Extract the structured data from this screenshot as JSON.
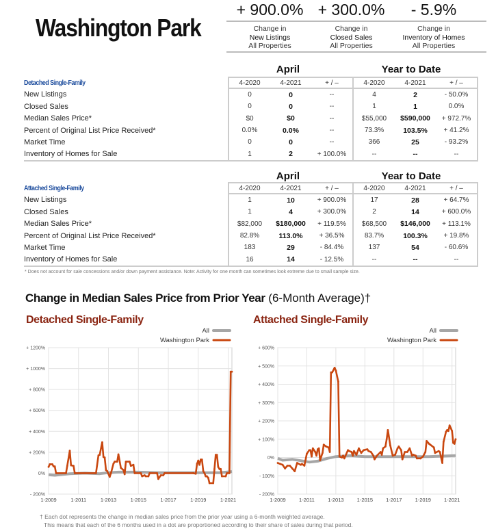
{
  "title": "Washington Park",
  "kpis": [
    {
      "value": "+ 900.0%",
      "line1": "Change in",
      "line2": "New Listings",
      "line3": "All Properties"
    },
    {
      "value": "+ 300.0%",
      "line1": "Change in",
      "line2": "Closed Sales",
      "line3": "All Properties"
    },
    {
      "value": "- 5.9%",
      "line1": "Change in",
      "line2": "Inventory of Homes",
      "line3": "All Properties"
    }
  ],
  "tables": [
    {
      "section": "Detached Single-Family",
      "group1": "April",
      "group2": "Year to Date",
      "columns": [
        "4-2020",
        "4-2021",
        "+ / –",
        "4-2020",
        "4-2021",
        "+ / –"
      ],
      "rows": [
        {
          "label": "New Listings",
          "cells": [
            "0",
            "0",
            "--",
            "4",
            "2",
            "- 50.0%"
          ]
        },
        {
          "label": "Closed Sales",
          "cells": [
            "0",
            "0",
            "--",
            "1",
            "1",
            "0.0%"
          ]
        },
        {
          "label": "Median Sales Price*",
          "cells": [
            "$0",
            "$0",
            "--",
            "$55,000",
            "$590,000",
            "+ 972.7%"
          ]
        },
        {
          "label": "Percent of Original List Price Received*",
          "cells": [
            "0.0%",
            "0.0%",
            "--",
            "73.3%",
            "103.5%",
            "+ 41.2%"
          ]
        },
        {
          "label": "Market Time",
          "cells": [
            "0",
            "0",
            "--",
            "366",
            "25",
            "- 93.2%"
          ]
        },
        {
          "label": "Inventory of Homes for Sale",
          "cells": [
            "1",
            "2",
            "+ 100.0%",
            "--",
            "--",
            "--"
          ]
        }
      ]
    },
    {
      "section": "Attached Single-Family",
      "group1": "April",
      "group2": "Year to Date",
      "columns": [
        "4-2020",
        "4-2021",
        "+ / –",
        "4-2020",
        "4-2021",
        "+ / –"
      ],
      "rows": [
        {
          "label": "New Listings",
          "cells": [
            "1",
            "10",
            "+ 900.0%",
            "17",
            "28",
            "+ 64.7%"
          ]
        },
        {
          "label": "Closed Sales",
          "cells": [
            "1",
            "4",
            "+ 300.0%",
            "2",
            "14",
            "+ 600.0%"
          ]
        },
        {
          "label": "Median Sales Price*",
          "cells": [
            "$82,000",
            "$180,000",
            "+ 119.5%",
            "$68,500",
            "$146,000",
            "+ 113.1%"
          ]
        },
        {
          "label": "Percent of Original List Price Received*",
          "cells": [
            "82.8%",
            "113.0%",
            "+ 36.5%",
            "83.7%",
            "100.3%",
            "+ 19.8%"
          ]
        },
        {
          "label": "Market Time",
          "cells": [
            "183",
            "29",
            "- 84.4%",
            "137",
            "54",
            "- 60.6%"
          ]
        },
        {
          "label": "Inventory of Homes for Sale",
          "cells": [
            "16",
            "14",
            "- 12.5%",
            "--",
            "--",
            "--"
          ]
        }
      ]
    }
  ],
  "table_footnote": "* Does not account for sale concessions and/or down payment assistance. Note: Activity for one month can sometimes look extreme due to small sample size.",
  "charts_title": "Change in Median Sales Price from Prior Year",
  "charts_subtitle": "(6-Month Average)†",
  "charts_footnote": [
    "† Each dot represents the change in median sales price from the prior year using a 6-month weighted average.",
    "This means that each of the 6 months used in a dot are proportioned according to their share of sales during that period."
  ],
  "colors": {
    "section_blue": "#1f4e9e",
    "chart_title": "#8a2411",
    "all_series": "#a6a6a6",
    "area_series": "#c9470f"
  },
  "chart_data": [
    {
      "type": "line",
      "title": "Detached Single-Family",
      "xticks": [
        "1-2009",
        "1-2011",
        "1-2013",
        "1-2015",
        "1-2017",
        "1-2019",
        "1-2021"
      ],
      "yticks": [
        "+ 1200%",
        "+ 1000%",
        "+ 800%",
        "+ 600%",
        "+ 400%",
        "+ 200%",
        "0%",
        "- 200%"
      ],
      "ylim": [
        -200,
        1200
      ],
      "xlim": [
        "2009-01",
        "2021-04"
      ],
      "grid": true,
      "legend": "top-right",
      "series": [
        {
          "name": "All",
          "color": "#a6a6a6",
          "points": [
            [
              "2009-01",
              -15
            ],
            [
              "2009-06",
              -20
            ],
            [
              "2010-06",
              -5
            ],
            [
              "2011-06",
              0
            ],
            [
              "2012-06",
              -5
            ],
            [
              "2013-01",
              5
            ],
            [
              "2013-09",
              10
            ],
            [
              "2015-01",
              10
            ],
            [
              "2016-06",
              5
            ],
            [
              "2018-01",
              5
            ],
            [
              "2019-06",
              5
            ],
            [
              "2020-06",
              5
            ],
            [
              "2021-04",
              15
            ]
          ]
        },
        {
          "name": "Washington Park",
          "color": "#c9470f",
          "points": [
            [
              "2009-01",
              60
            ],
            [
              "2009-02",
              85
            ],
            [
              "2009-04",
              85
            ],
            [
              "2009-05",
              65
            ],
            [
              "2009-06",
              65
            ],
            [
              "2009-07",
              0
            ],
            [
              "2010-03",
              0
            ],
            [
              "2010-04",
              70
            ],
            [
              "2010-06",
              215
            ],
            [
              "2010-07",
              75
            ],
            [
              "2010-09",
              70
            ],
            [
              "2010-10",
              0
            ],
            [
              "2012-03",
              0
            ],
            [
              "2012-05",
              170
            ],
            [
              "2012-06",
              175
            ],
            [
              "2012-08",
              295
            ],
            [
              "2012-09",
              155
            ],
            [
              "2012-10",
              150
            ],
            [
              "2012-11",
              30
            ],
            [
              "2012-12",
              20
            ],
            [
              "2013-02",
              -35
            ],
            [
              "2013-03",
              0
            ],
            [
              "2013-05",
              90
            ],
            [
              "2013-06",
              110
            ],
            [
              "2013-08",
              110
            ],
            [
              "2013-09",
              180
            ],
            [
              "2013-11",
              50
            ],
            [
              "2014-01",
              30
            ],
            [
              "2014-02",
              -10
            ],
            [
              "2014-03",
              110
            ],
            [
              "2014-06",
              110
            ],
            [
              "2014-07",
              70
            ],
            [
              "2014-09",
              80
            ],
            [
              "2014-10",
              0
            ],
            [
              "2015-03",
              0
            ],
            [
              "2015-04",
              -30
            ],
            [
              "2015-06",
              -20
            ],
            [
              "2015-07",
              -30
            ],
            [
              "2015-09",
              -30
            ],
            [
              "2015-10",
              0
            ],
            [
              "2016-04",
              0
            ],
            [
              "2016-05",
              -55
            ],
            [
              "2016-07",
              -20
            ],
            [
              "2016-09",
              -20
            ],
            [
              "2016-10",
              0
            ],
            [
              "2018-09",
              0
            ],
            [
              "2018-11",
              -5
            ],
            [
              "2018-12",
              90
            ],
            [
              "2019-01",
              120
            ],
            [
              "2019-02",
              80
            ],
            [
              "2019-03",
              130
            ],
            [
              "2019-04",
              130
            ],
            [
              "2019-05",
              20
            ],
            [
              "2019-06",
              0
            ],
            [
              "2019-07",
              -30
            ],
            [
              "2019-08",
              -30
            ],
            [
              "2019-09",
              -45
            ],
            [
              "2019-10",
              -95
            ],
            [
              "2020-01",
              -95
            ],
            [
              "2020-02",
              40
            ],
            [
              "2020-03",
              175
            ],
            [
              "2020-04",
              175
            ],
            [
              "2020-05",
              60
            ],
            [
              "2020-06",
              40
            ],
            [
              "2020-07",
              40
            ],
            [
              "2020-08",
              -30
            ],
            [
              "2020-11",
              -30
            ],
            [
              "2020-12",
              0
            ],
            [
              "2021-02",
              0
            ],
            [
              "2021-03",
              970
            ],
            [
              "2021-04",
              970
            ]
          ]
        }
      ]
    },
    {
      "type": "line",
      "title": "Attached Single-Family",
      "xticks": [
        "1-2009",
        "1-2011",
        "1-2013",
        "1-2015",
        "1-2017",
        "1-2019",
        "1-2021"
      ],
      "yticks": [
        "+ 600%",
        "+ 500%",
        "+ 400%",
        "+ 300%",
        "+ 200%",
        "+ 100%",
        "0%",
        "- 100%",
        "- 200%"
      ],
      "ylim": [
        -200,
        600
      ],
      "xlim": [
        "2009-01",
        "2021-04"
      ],
      "grid": true,
      "legend": "top-right",
      "series": [
        {
          "name": "All",
          "color": "#a6a6a6",
          "points": [
            [
              "2009-01",
              -5
            ],
            [
              "2009-05",
              -15
            ],
            [
              "2010-01",
              -10
            ],
            [
              "2011-03",
              -25
            ],
            [
              "2011-10",
              -20
            ],
            [
              "2012-06",
              -5
            ],
            [
              "2013-01",
              5
            ],
            [
              "2014-01",
              10
            ],
            [
              "2015-01",
              5
            ],
            [
              "2016-06",
              5
            ],
            [
              "2018-01",
              5
            ],
            [
              "2019-06",
              5
            ],
            [
              "2021-04",
              10
            ]
          ]
        },
        {
          "name": "Washington Park",
          "color": "#c9470f",
          "points": [
            [
              "2009-01",
              -30
            ],
            [
              "2009-03",
              -35
            ],
            [
              "2009-05",
              -40
            ],
            [
              "2009-07",
              -60
            ],
            [
              "2009-09",
              -45
            ],
            [
              "2009-11",
              -45
            ],
            [
              "2010-01",
              -60
            ],
            [
              "2010-03",
              -75
            ],
            [
              "2010-05",
              -30
            ],
            [
              "2010-08",
              -40
            ],
            [
              "2010-09",
              -35
            ],
            [
              "2010-11",
              -45
            ],
            [
              "2011-01",
              20
            ],
            [
              "2011-03",
              40
            ],
            [
              "2011-04",
              40
            ],
            [
              "2011-05",
              5
            ],
            [
              "2011-06",
              50
            ],
            [
              "2011-08",
              30
            ],
            [
              "2011-09",
              10
            ],
            [
              "2011-10",
              45
            ],
            [
              "2011-11",
              50
            ],
            [
              "2011-12",
              -15
            ],
            [
              "2012-02",
              25
            ],
            [
              "2012-03",
              70
            ],
            [
              "2012-05",
              60
            ],
            [
              "2012-07",
              55
            ],
            [
              "2012-08",
              30
            ],
            [
              "2012-09",
              465
            ],
            [
              "2012-10",
              465
            ],
            [
              "2012-12",
              490
            ],
            [
              "2013-01",
              475
            ],
            [
              "2013-03",
              415
            ],
            [
              "2013-04",
              5
            ],
            [
              "2013-06",
              0
            ],
            [
              "2013-07",
              10
            ],
            [
              "2013-08",
              -5
            ],
            [
              "2013-11",
              40
            ],
            [
              "2013-12",
              35
            ],
            [
              "2014-02",
              30
            ],
            [
              "2014-03",
              10
            ],
            [
              "2014-04",
              35
            ],
            [
              "2014-06",
              15
            ],
            [
              "2014-08",
              50
            ],
            [
              "2014-10",
              25
            ],
            [
              "2014-12",
              40
            ],
            [
              "2015-03",
              45
            ],
            [
              "2015-04",
              35
            ],
            [
              "2015-06",
              30
            ],
            [
              "2015-08",
              10
            ],
            [
              "2015-09",
              -10
            ],
            [
              "2015-11",
              10
            ],
            [
              "2016-02",
              30
            ],
            [
              "2016-03",
              15
            ],
            [
              "2016-04",
              50
            ],
            [
              "2016-06",
              60
            ],
            [
              "2016-07",
              100
            ],
            [
              "2016-08",
              150
            ],
            [
              "2016-10",
              65
            ],
            [
              "2016-12",
              10
            ],
            [
              "2017-02",
              15
            ],
            [
              "2017-04",
              50
            ],
            [
              "2017-05",
              60
            ],
            [
              "2017-07",
              40
            ],
            [
              "2017-08",
              -10
            ],
            [
              "2017-10",
              30
            ],
            [
              "2017-12",
              30
            ],
            [
              "2018-02",
              50
            ],
            [
              "2018-04",
              10
            ],
            [
              "2018-05",
              15
            ],
            [
              "2018-07",
              10
            ],
            [
              "2018-08",
              -5
            ],
            [
              "2018-11",
              -5
            ],
            [
              "2019-01",
              5
            ],
            [
              "2019-03",
              30
            ],
            [
              "2019-04",
              90
            ],
            [
              "2019-06",
              75
            ],
            [
              "2019-07",
              70
            ],
            [
              "2019-10",
              55
            ],
            [
              "2019-11",
              25
            ],
            [
              "2020-02",
              35
            ],
            [
              "2020-03",
              30
            ],
            [
              "2020-05",
              -30
            ],
            [
              "2020-06",
              85
            ],
            [
              "2020-08",
              140
            ],
            [
              "2020-09",
              150
            ],
            [
              "2020-10",
              145
            ],
            [
              "2020-11",
              175
            ],
            [
              "2021-01",
              145
            ],
            [
              "2021-02",
              80
            ],
            [
              "2021-03",
              75
            ],
            [
              "2021-04",
              100
            ]
          ]
        }
      ]
    }
  ]
}
